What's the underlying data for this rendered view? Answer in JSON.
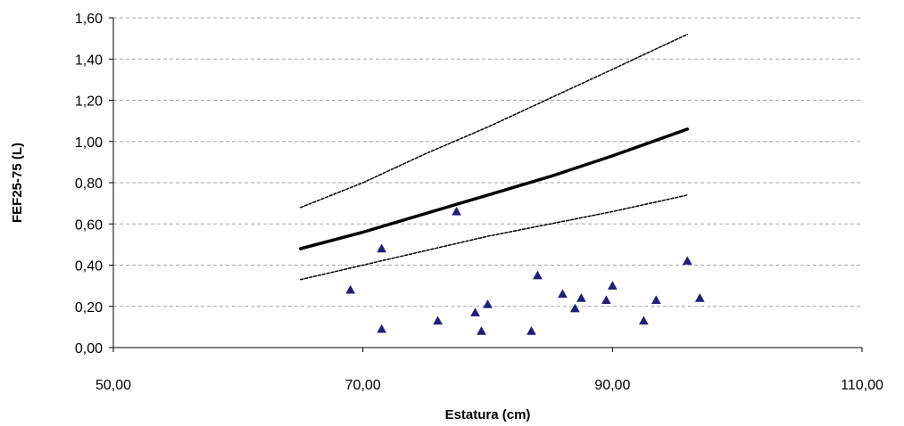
{
  "chart_data": {
    "type": "scatter",
    "title": "",
    "xlabel": "Estatura (cm)",
    "ylabel": "FEF25-75 (L)",
    "xlim": [
      50,
      110
    ],
    "ylim": [
      0,
      1.6
    ],
    "xticks": [
      50,
      70,
      90,
      110
    ],
    "xtick_labels": [
      "50,00",
      "70,00",
      "90,00",
      "110,00"
    ],
    "yticks": [
      0,
      0.2,
      0.4,
      0.6,
      0.8,
      1.0,
      1.2,
      1.4,
      1.6
    ],
    "ytick_labels": [
      "0,00",
      "0,20",
      "0,40",
      "0,60",
      "0,80",
      "1,00",
      "1,20",
      "1,40",
      "1,60"
    ],
    "grid": true,
    "marker_color": "#1f1f7a",
    "points": {
      "x": [
        69,
        71.5,
        71.5,
        76,
        77.5,
        79,
        79.5,
        80,
        83.5,
        84,
        86,
        87,
        87.5,
        89.5,
        90,
        92.5,
        93.5,
        96,
        97
      ],
      "y": [
        0.28,
        0.48,
        0.09,
        0.13,
        0.66,
        0.17,
        0.08,
        0.21,
        0.08,
        0.35,
        0.26,
        0.19,
        0.24,
        0.23,
        0.3,
        0.13,
        0.23,
        0.42,
        0.24
      ]
    },
    "reference_lines": [
      {
        "style": "solid",
        "x": [
          65,
          70,
          75,
          80,
          85,
          90,
          96
        ],
        "y": [
          0.48,
          0.56,
          0.65,
          0.74,
          0.83,
          0.93,
          1.06
        ]
      },
      {
        "style": "dashed",
        "x": [
          65,
          70,
          75,
          80,
          85,
          90,
          96
        ],
        "y": [
          0.68,
          0.8,
          0.94,
          1.07,
          1.21,
          1.35,
          1.52
        ]
      },
      {
        "style": "dashed",
        "x": [
          65,
          70,
          75,
          80,
          85,
          90,
          96
        ],
        "y": [
          0.33,
          0.4,
          0.47,
          0.54,
          0.6,
          0.66,
          0.74
        ]
      }
    ]
  }
}
